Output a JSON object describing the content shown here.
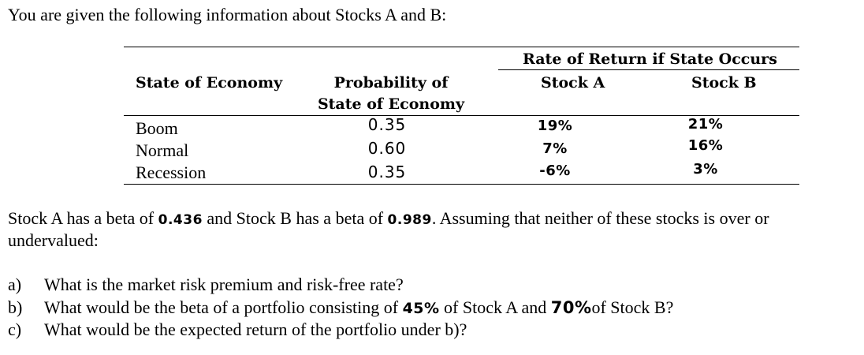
{
  "intro": "You are given the following information about Stocks A and B:",
  "table": {
    "group_header": "Rate of Return if State Occurs",
    "col_state": "State of Economy",
    "col_prob_line1": "Probability of",
    "col_prob_line2": "State of Economy",
    "col_a": "Stock A",
    "col_b": "Stock B",
    "rows": [
      {
        "state": "Boom",
        "prob": "0.35",
        "a": "19%",
        "b": "21%"
      },
      {
        "state": "Normal",
        "prob": "0.60",
        "a": "7%",
        "b": "16%"
      },
      {
        "state": "Recession",
        "prob": "0.35",
        "a": "-6%",
        "b": "3%"
      }
    ]
  },
  "beta_text": {
    "p1": "Stock A has a beta of ",
    "beta_a": "0.436",
    "p2": " and Stock B has a beta of ",
    "beta_b": "0.989",
    "p3": ". Assuming that neither of these stocks is over or",
    "line2": "undervalued:"
  },
  "questions": [
    {
      "label": "a)",
      "text": "What is the market risk premium and risk-free rate?"
    },
    {
      "label": "b)",
      "t1": "What would be the beta of a portfolio consisting of ",
      "v1": "45%",
      "t2": " of Stock A and ",
      "v2": "70%",
      "t3": "of Stock B?"
    },
    {
      "label": "c)",
      "text": "What would be the expected return of the portfolio under b)?"
    }
  ]
}
